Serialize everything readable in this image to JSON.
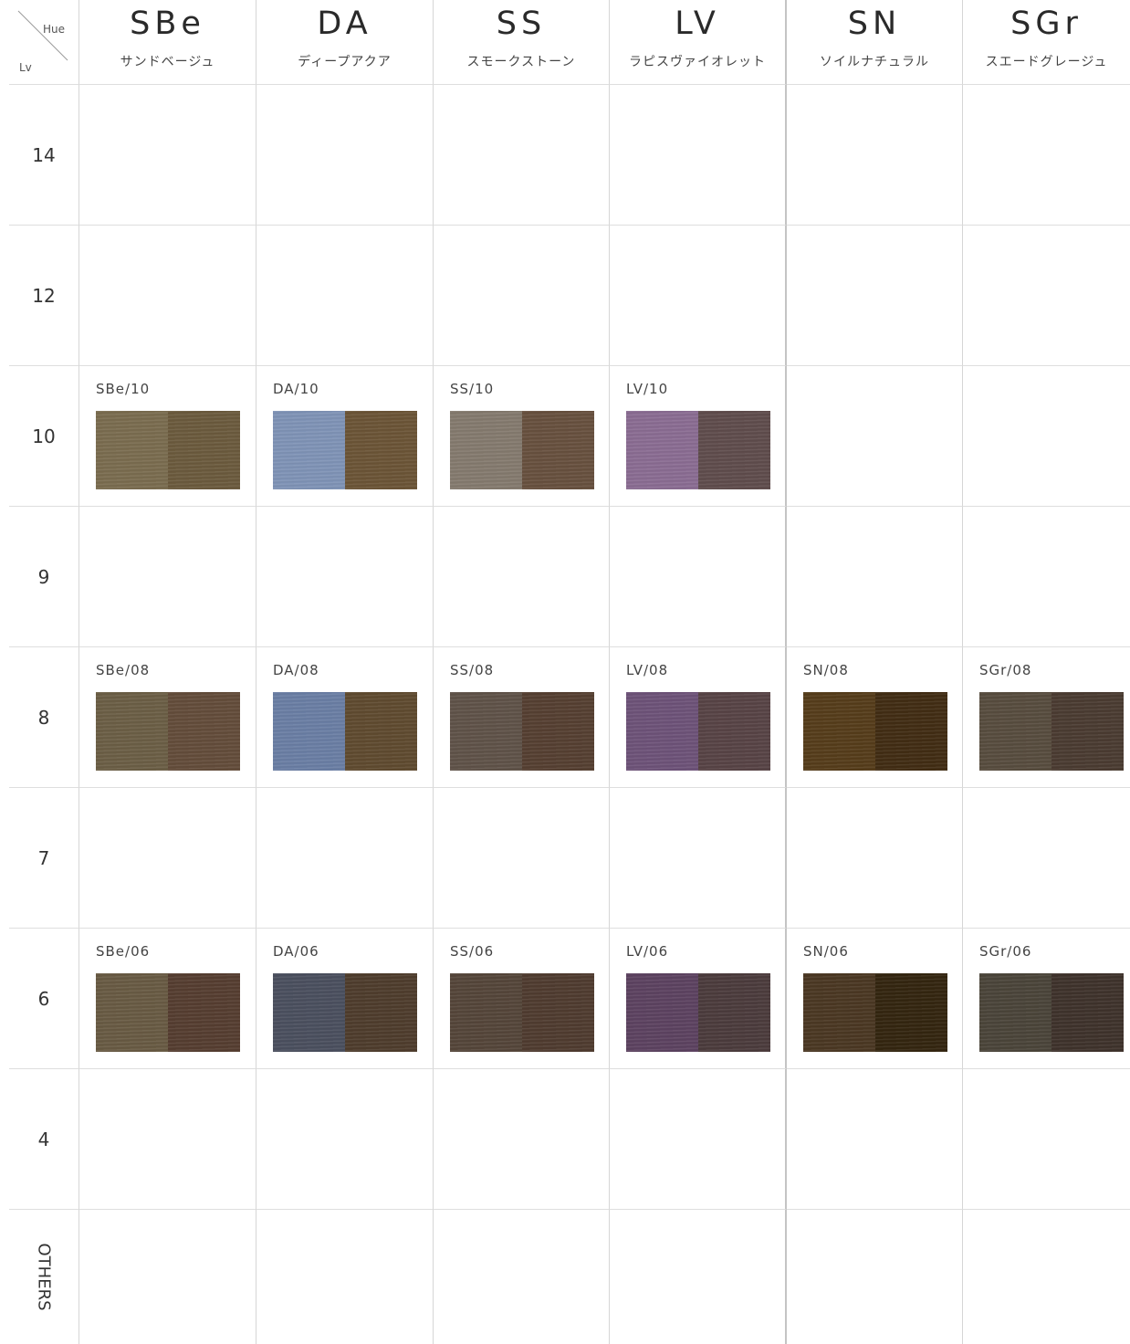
{
  "corner": {
    "hue_label": "Hue",
    "lv_label": "Lv"
  },
  "hues": [
    {
      "code": "SBe",
      "name": "サンドベージュ"
    },
    {
      "code": "DA",
      "name": "ディープアクア"
    },
    {
      "code": "SS",
      "name": "スモークストーン"
    },
    {
      "code": "LV",
      "name": "ラピスヴァイオレット"
    },
    {
      "code": "SN",
      "name": "ソイルナチュラル"
    },
    {
      "code": "SGr",
      "name": "スエードグレージュ"
    }
  ],
  "levels": [
    "14",
    "12",
    "10",
    "9",
    "8",
    "7",
    "6",
    "4",
    "OTHERS"
  ],
  "swatches": {
    "10": [
      {
        "label": "SBe/10",
        "colors": [
          "#7a6c4f",
          "#6b5a3d"
        ]
      },
      {
        "label": "DA/10",
        "colors": [
          "#7f93b6",
          "#6b5436"
        ]
      },
      {
        "label": "SS/10",
        "colors": [
          "#847a6e",
          "#67503e"
        ]
      },
      {
        "label": "LV/10",
        "colors": [
          "#8a6c92",
          "#5f4c4c"
        ]
      },
      null,
      null
    ],
    "8": [
      {
        "label": "SBe/08",
        "colors": [
          "#6b5e45",
          "#634c3a"
        ]
      },
      {
        "label": "DA/08",
        "colors": [
          "#6a7ea4",
          "#5f4a2f"
        ]
      },
      {
        "label": "SS/08",
        "colors": [
          "#5f5248",
          "#553f31"
        ]
      },
      {
        "label": "LV/08",
        "colors": [
          "#6d5278",
          "#574345"
        ]
      },
      {
        "label": "SN/08",
        "colors": [
          "#553c1a",
          "#412c13"
        ]
      },
      {
        "label": "SGr/08",
        "colors": [
          "#574c3e",
          "#4a3b31"
        ]
      }
    ],
    "6": [
      {
        "label": "SBe/06",
        "colors": [
          "#685a43",
          "#553d30"
        ]
      },
      {
        "label": "DA/06",
        "colors": [
          "#4a4f5e",
          "#4e3c2c"
        ]
      },
      {
        "label": "SS/06",
        "colors": [
          "#544539",
          "#4f3b2f"
        ]
      },
      {
        "label": "LV/06",
        "colors": [
          "#5c4260",
          "#4b3b3c"
        ]
      },
      {
        "label": "SN/06",
        "colors": [
          "#4a3722",
          "#33250f"
        ]
      },
      {
        "label": "SGr/06",
        "colors": [
          "#4a4439",
          "#3e322b"
        ]
      }
    ]
  }
}
